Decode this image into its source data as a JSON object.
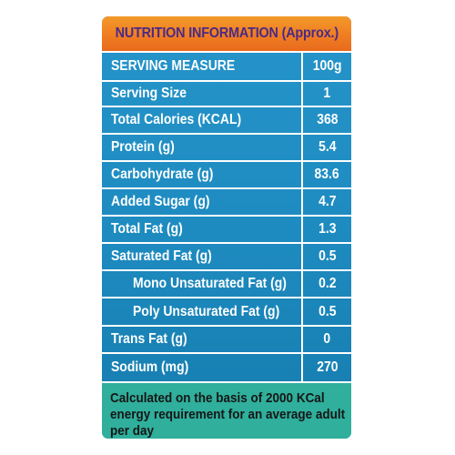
{
  "title": "NUTRITION INFORMATION (Approx.)",
  "rows": [
    {
      "name": "SERVING MEASURE",
      "value": "100g"
    },
    {
      "name": "Serving Size",
      "value": "1"
    },
    {
      "name": "Total Calories (KCAL)",
      "value": "368"
    },
    {
      "name": "Protein (g)",
      "value": "5.4"
    },
    {
      "name": "Carbohydrate (g)",
      "value": "83.6"
    },
    {
      "name": "Added Sugar (g)",
      "value": "4.7"
    },
    {
      "name": "Total Fat (g)",
      "value": "1.3"
    },
    {
      "name": "Saturated Fat (g)",
      "value": "0.5"
    },
    {
      "name": "Mono Unsaturated Fat (g)",
      "value": "0.2"
    },
    {
      "name": "Poly Unsaturated Fat (g)",
      "value": "0.5"
    },
    {
      "name": "Trans Fat (g)",
      "value": "0"
    },
    {
      "name": "Sodium (mg)",
      "value": "270"
    }
  ],
  "footer_note": "Calculated on the basis of 2000 KCal energy requirement for an average adult per day",
  "colors": {
    "title_bg": "#f07d22",
    "title_text": "#4a2a86",
    "table_bg": "#1e8fc4",
    "footer_bg": "#2faf9c"
  }
}
